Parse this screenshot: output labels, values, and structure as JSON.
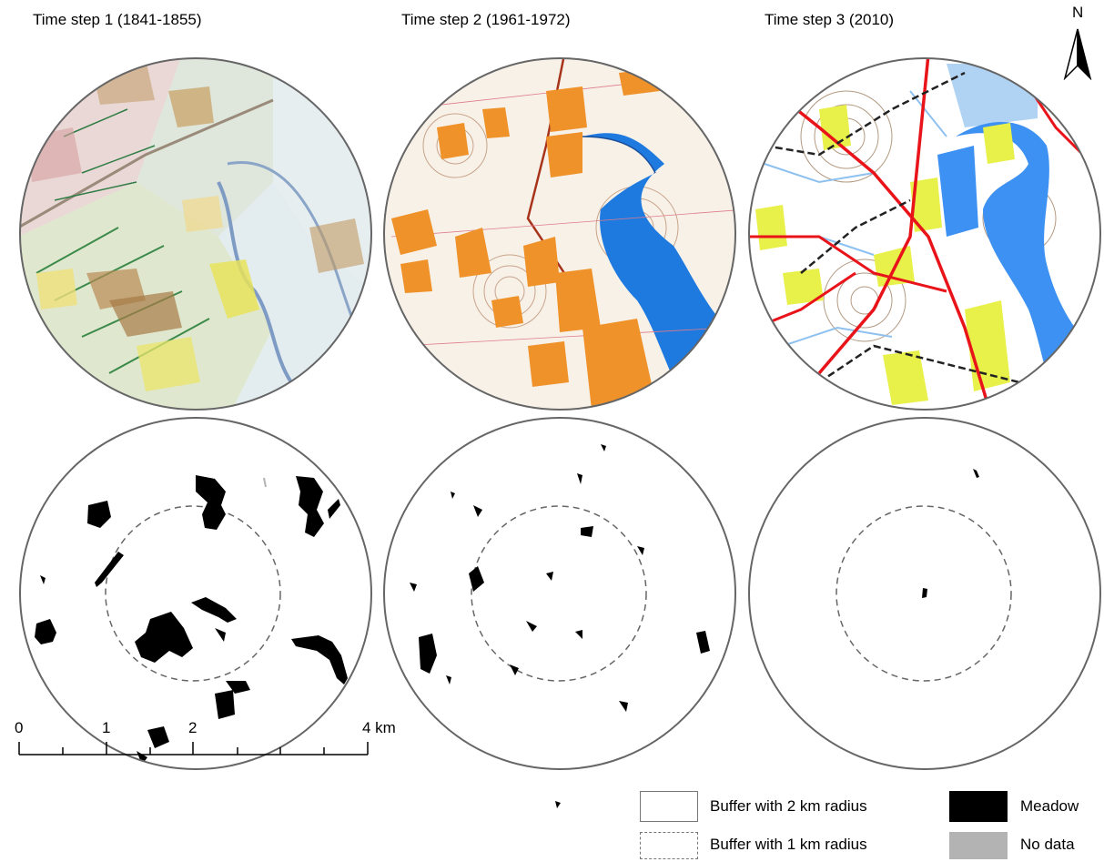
{
  "titles": [
    "Time step 1 (1841-1855)",
    "Time step 2 (1961-1972)",
    "Time step 3 (2010)"
  ],
  "north_label": "N",
  "scale": {
    "ticks": [
      "0",
      "1",
      "2",
      "4 km"
    ]
  },
  "legend": {
    "buffer_2km": "Buffer with 2 km radius",
    "buffer_1km": "Buffer with 1 km radius",
    "meadow": "Meadow",
    "no_data": "No data"
  },
  "colors": {
    "meadow": "#000000",
    "no_data": "#b3b3b3",
    "water": "#1f7ae0",
    "meadow_1960s": "#f0922a",
    "meadow_2010": "#e8f04a",
    "roads_2010": "#e8141a",
    "streams_2010": "#8ec1f0"
  }
}
